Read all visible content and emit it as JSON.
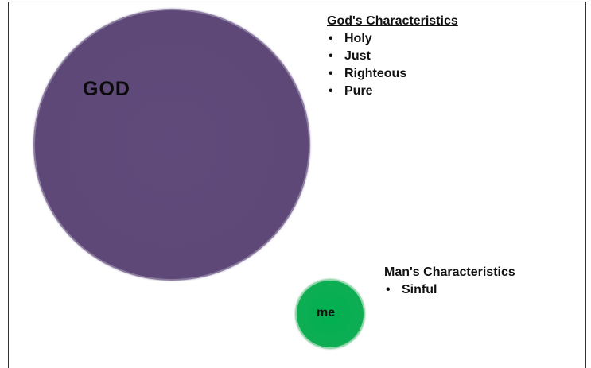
{
  "diagram": {
    "god": {
      "label": "GOD",
      "color": "#604a7b"
    },
    "me": {
      "label": "me",
      "color": "#00b050"
    },
    "god_characteristics": {
      "title": "God's Characteristics",
      "items": [
        {
          "label": "Holy"
        },
        {
          "label": "Just"
        },
        {
          "label": "Righteous"
        },
        {
          "label": "Pure"
        }
      ]
    },
    "man_characteristics": {
      "title": "Man's Characteristics",
      "items": [
        {
          "label": "Sinful"
        }
      ]
    },
    "bullet_glyph": "•"
  }
}
